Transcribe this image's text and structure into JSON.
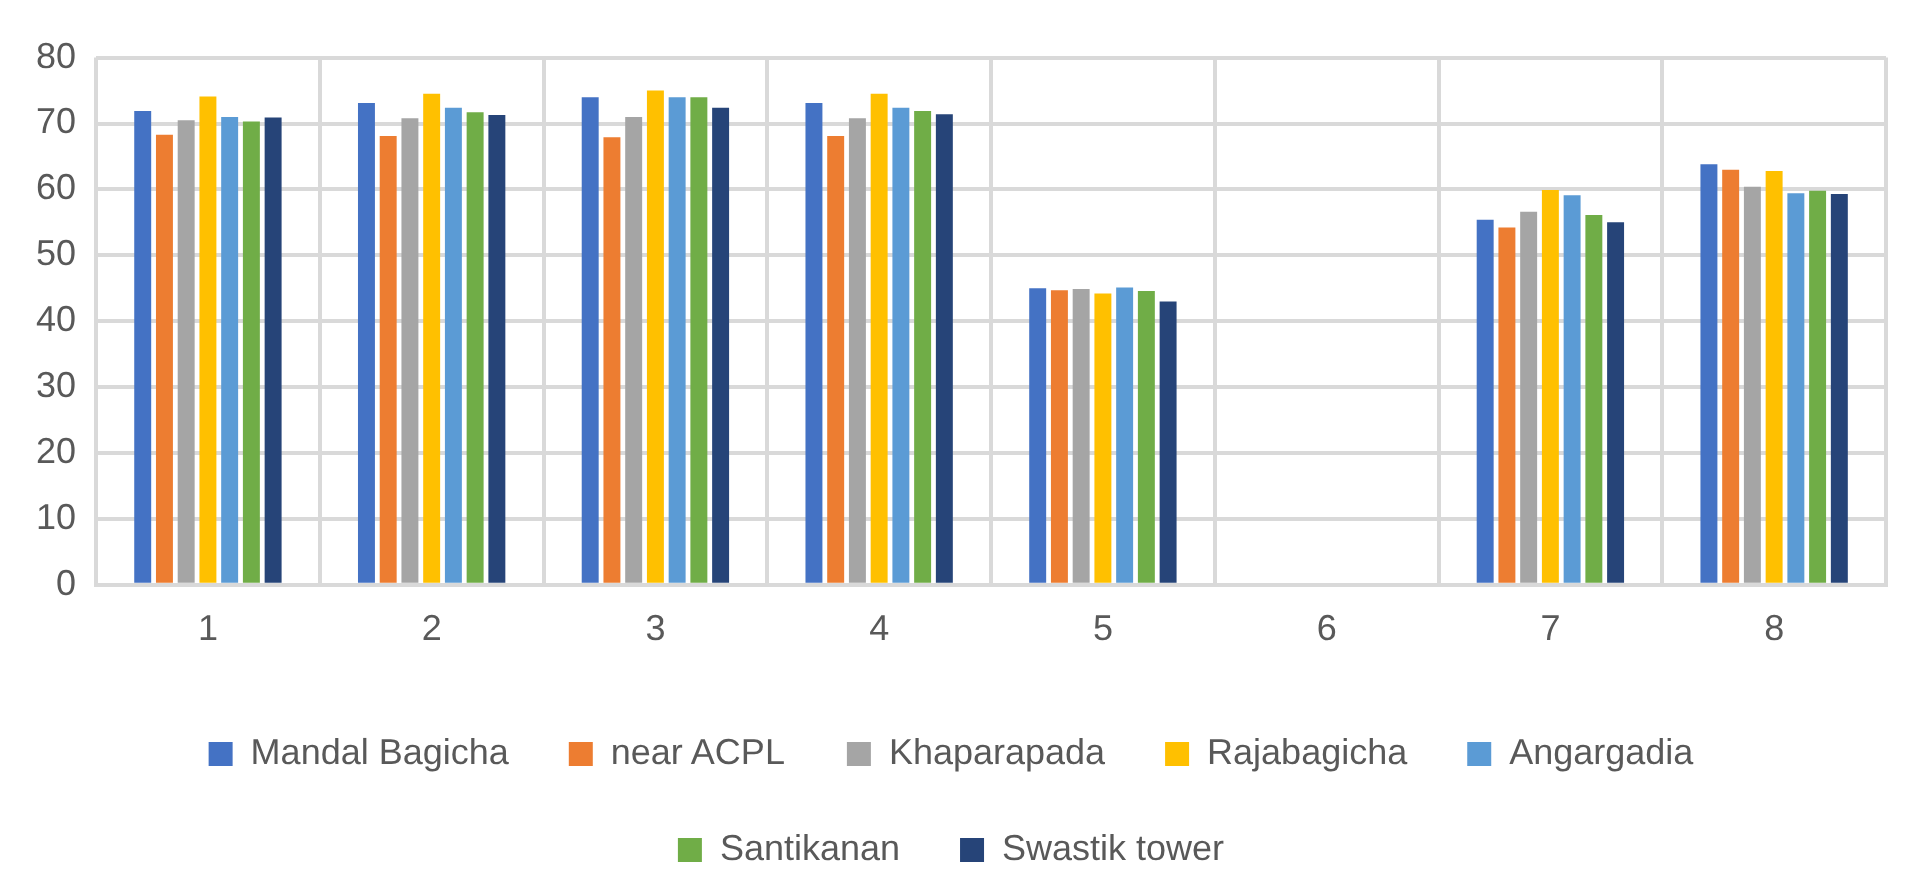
{
  "chart_data": {
    "type": "bar",
    "categories": [
      "1",
      "2",
      "3",
      "4",
      "5",
      "6",
      "7",
      "8"
    ],
    "series": [
      {
        "name": "Mandal Bagicha",
        "color": "#4472c4",
        "values": [
          71.9,
          73.1,
          74.0,
          73.1,
          45.0,
          null,
          55.4,
          63.8
        ]
      },
      {
        "name": "near ACPL",
        "color": "#ed7d31",
        "values": [
          68.3,
          68.1,
          67.9,
          68.1,
          44.7,
          null,
          54.2,
          63.0
        ]
      },
      {
        "name": "Khaparapada",
        "color": "#a5a5a5",
        "values": [
          70.5,
          70.8,
          71.0,
          70.8,
          44.9,
          null,
          56.6,
          60.4
        ]
      },
      {
        "name": "Rajabagicha",
        "color": "#ffc000",
        "values": [
          74.1,
          74.5,
          75.0,
          74.5,
          44.2,
          null,
          59.9,
          62.8
        ]
      },
      {
        "name": "Angargadia",
        "color": "#5b9bd5",
        "values": [
          71.0,
          72.4,
          74.0,
          72.4,
          45.1,
          null,
          59.1,
          59.4
        ]
      },
      {
        "name": "Santikanan",
        "color": "#70ad47",
        "values": [
          70.3,
          71.7,
          74.0,
          71.9,
          44.6,
          null,
          56.1,
          59.8
        ]
      },
      {
        "name": "Swastik tower",
        "color": "#264478",
        "values": [
          70.9,
          71.3,
          72.4,
          71.4,
          43.0,
          null,
          55.0,
          59.3
        ]
      }
    ],
    "ylim": [
      0,
      80
    ],
    "yticks": [
      0,
      10,
      20,
      30,
      40,
      50,
      60,
      70,
      80
    ],
    "grid": true,
    "legend": "bottom"
  }
}
